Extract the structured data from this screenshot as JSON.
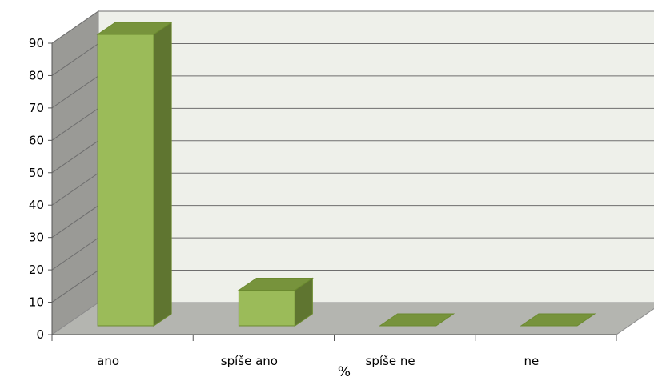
{
  "chart_data": {
    "type": "bar",
    "style": "3d-column",
    "categories": [
      "ano",
      "spíše ano",
      "spíše ne",
      "ne"
    ],
    "series": [
      {
        "name": "%",
        "values": [
          90,
          11,
          0,
          0
        ]
      }
    ],
    "ylim": [
      0,
      90
    ],
    "yticks": [
      "0",
      "10",
      "20",
      "30",
      "40",
      "50",
      "60",
      "70",
      "80",
      "90"
    ],
    "xlabel": "",
    "ylabel": "",
    "grid": true,
    "legend_position": "bottom",
    "colors": {
      "bar_front": "#9bbb59",
      "bar_top": "#77933c",
      "bar_side": "#5f7530",
      "bar_stroke": "#6b8a2f",
      "back_wall": "#eef0ea",
      "side_wall": "#9a9a96",
      "floor": "#b4b5b0",
      "grid": "#6e6e6e"
    }
  }
}
